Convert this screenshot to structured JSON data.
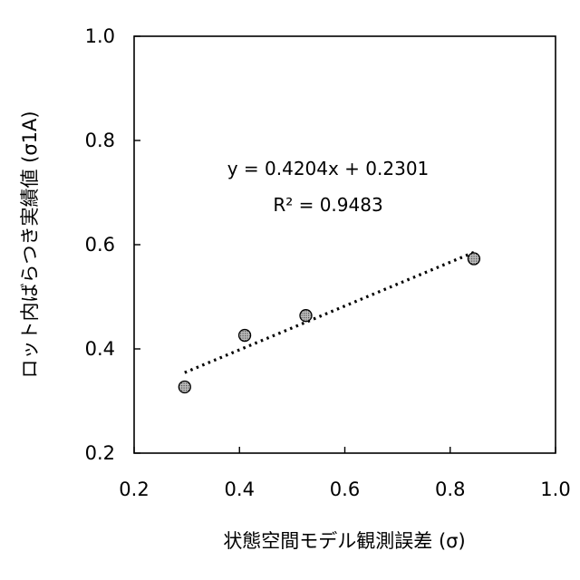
{
  "chart_data": {
    "type": "scatter",
    "title": "",
    "xlabel": "状態空間モデル観測誤差 (σ)",
    "ylabel": "ロット内ばらつき実績値 (σ1A)",
    "xlim": [
      0.2,
      1.0
    ],
    "ylim": [
      0.2,
      1.0
    ],
    "x_ticks": [
      0.2,
      0.4,
      0.6,
      0.8,
      1.0
    ],
    "y_ticks": [
      0.2,
      0.4,
      0.6,
      0.8,
      1.0
    ],
    "x_tick_labels": [
      "0.2",
      "0.4",
      "0.6",
      "0.8",
      "1.0"
    ],
    "y_tick_labels": [
      "0.2",
      "0.4",
      "0.6",
      "0.8",
      "1.0"
    ],
    "grid": false,
    "legend": "none",
    "series": [
      {
        "x": [
          0.296,
          0.41,
          0.526,
          0.845
        ],
        "y": [
          0.327,
          0.426,
          0.464,
          0.573
        ],
        "marker_color": "#a0a0a0"
      }
    ],
    "trendline": {
      "type": "linear",
      "slope": 0.4204,
      "intercept": 0.2301,
      "x_range": [
        0.296,
        0.845
      ],
      "style": "dotted"
    },
    "annotations": {
      "equation": "y = 0.4204x + 0.2301",
      "r_squared": "R² = 0.9483"
    }
  }
}
